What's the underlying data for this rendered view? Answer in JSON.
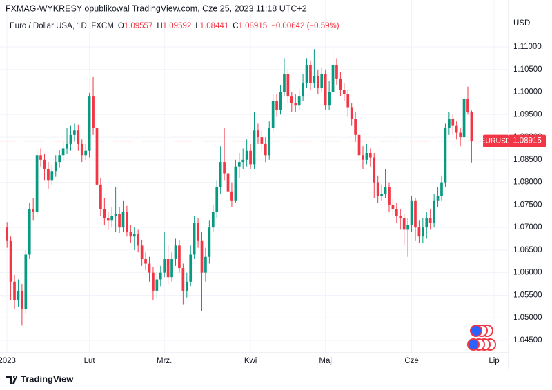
{
  "header": {
    "publisher": "FXMAG-WYKRESY opublikował TradingView.com, Cze 25, 2023 11:18 UTC+2",
    "ohlc_labels": [
      "O",
      "H",
      "L",
      "C"
    ],
    "change": "−0.00642 (−0.59%)"
  },
  "footer": {
    "brand": "TradingView"
  },
  "chart_data": {
    "type": "candlestick",
    "title": "Euro / Dollar USA, 1D, FXCM",
    "y_axis_label": "USD",
    "symbol": "EURUSD",
    "up_color": "#089981",
    "down_color": "#f23645",
    "grid": true,
    "open": [
      1.07,
      1.067,
      1.058,
      1.054,
      1.056,
      1.052,
      1.064,
      1.074,
      1.0735,
      1.086,
      1.085,
      1.083,
      1.0805,
      1.0825,
      1.0845,
      1.086,
      1.0875,
      1.0885,
      1.0905,
      1.0915,
      1.0885,
      1.086,
      1.087,
      1.099,
      1.092,
      1.0795,
      1.074,
      1.072,
      1.0715,
      1.0725,
      1.073,
      1.07,
      1.0735,
      1.069,
      1.068,
      1.0685,
      1.066,
      1.063,
      1.062,
      1.06,
      1.056,
      1.0585,
      1.06,
      1.063,
      1.059,
      1.063,
      1.066,
      1.061,
      1.056,
      1.058,
      1.064,
      1.071,
      1.067,
      1.06,
      1.0635,
      1.07,
      1.0735,
      1.079,
      1.0845,
      1.082,
      1.078,
      1.076,
      1.0835,
      1.0845,
      1.085,
      1.087,
      1.084,
      1.0915,
      1.09,
      1.0885,
      1.086,
      1.092,
      1.098,
      1.096,
      1.1,
      1.104,
      1.099,
      1.0975,
      1.097,
      1.099,
      1.102,
      1.106,
      1.102,
      1.1035,
      1.101,
      1.104,
      1.097,
      1.1,
      1.106,
      1.103,
      1.1005,
      1.0995,
      1.0965,
      1.094,
      1.0905,
      1.086,
      1.085,
      1.0865,
      1.0855,
      1.08,
      1.077,
      1.0775,
      1.079,
      1.075,
      1.074,
      1.0725,
      1.072,
      1.0695,
      1.0705,
      1.076,
      1.07,
      1.068,
      1.07,
      1.072,
      1.071,
      1.076,
      1.077,
      1.08,
      1.092,
      1.094,
      1.0925,
      1.091,
      1.09,
      1.0985,
      1.09557
    ],
    "high": [
      1.0712,
      1.068,
      1.0595,
      1.0585,
      1.0575,
      1.065,
      1.0755,
      1.0765,
      1.087,
      1.0875,
      1.0862,
      1.0845,
      1.0838,
      1.086,
      1.0872,
      1.089,
      1.092,
      1.0925,
      1.093,
      1.0928,
      1.0895,
      1.0885,
      1.0998,
      1.1033,
      1.0935,
      1.081,
      1.0765,
      1.0735,
      1.0745,
      1.079,
      1.0745,
      1.076,
      1.0748,
      1.0705,
      1.07,
      1.0695,
      1.0672,
      1.0645,
      1.0635,
      1.0612,
      1.06,
      1.0615,
      1.069,
      1.066,
      1.0645,
      1.0675,
      1.0672,
      1.062,
      1.06,
      1.066,
      1.0725,
      1.072,
      1.069,
      1.0655,
      1.0715,
      1.075,
      1.0805,
      1.088,
      1.092,
      1.0835,
      1.08,
      1.085,
      1.0865,
      1.0875,
      1.0895,
      1.0885,
      1.0955,
      1.093,
      1.0915,
      1.09,
      1.0935,
      1.0995,
      1.0995,
      1.1015,
      1.1075,
      1.105,
      1.1,
      1.0995,
      1.1005,
      1.104,
      1.1075,
      1.107,
      1.1095,
      1.105,
      1.1055,
      1.105,
      1.1025,
      1.1092,
      1.1075,
      1.1045,
      1.102,
      1.1005,
      1.0975,
      1.0955,
      1.0915,
      1.088,
      1.0885,
      1.0875,
      1.0865,
      1.0815,
      1.0795,
      1.083,
      1.08,
      1.0765,
      1.0755,
      1.074,
      1.073,
      1.072,
      1.077,
      1.0765,
      1.0715,
      1.072,
      1.0735,
      1.074,
      1.0775,
      1.079,
      1.0815,
      1.093,
      1.0955,
      1.095,
      1.0935,
      1.092,
      1.099,
      1.1012,
      1.09592
    ],
    "low": [
      1.0655,
      1.054,
      1.052,
      1.0525,
      1.0483,
      1.051,
      1.063,
      1.0715,
      1.0725,
      1.0835,
      1.0805,
      1.0785,
      1.0795,
      1.0812,
      1.0832,
      1.0848,
      1.0862,
      1.087,
      1.089,
      1.087,
      1.0845,
      1.085,
      1.0855,
      1.0905,
      1.0785,
      1.0725,
      1.0705,
      1.0695,
      1.07,
      1.069,
      1.0688,
      1.069,
      1.068,
      1.0665,
      1.065,
      1.0645,
      1.0615,
      1.0605,
      1.058,
      1.054,
      1.0545,
      1.057,
      1.059,
      1.0575,
      1.058,
      1.0615,
      1.06,
      1.053,
      1.0545,
      1.057,
      1.063,
      1.0655,
      1.0515,
      1.058,
      1.062,
      1.069,
      1.072,
      1.0775,
      1.0805,
      1.0765,
      1.0745,
      1.0755,
      1.081,
      1.083,
      1.0835,
      1.083,
      1.083,
      1.0885,
      1.087,
      1.0845,
      1.085,
      1.091,
      1.0945,
      1.095,
      1.099,
      1.0975,
      1.0955,
      1.0955,
      1.096,
      1.098,
      1.101,
      1.1005,
      1.101,
      1.0995,
      1.1,
      1.096,
      1.096,
      1.099,
      1.1015,
      1.099,
      1.098,
      1.0945,
      1.0925,
      1.089,
      1.0845,
      1.083,
      1.084,
      1.0835,
      1.0765,
      1.0755,
      1.076,
      1.0765,
      1.0735,
      1.0725,
      1.071,
      1.0695,
      1.066,
      1.0635,
      1.069,
      1.067,
      1.0665,
      1.0665,
      1.0675,
      1.0695,
      1.07,
      1.0745,
      1.076,
      1.079,
      1.0905,
      1.0905,
      1.0895,
      1.088,
      1.089,
      1.095,
      1.08441
    ],
    "close": [
      1.067,
      1.058,
      1.054,
      1.056,
      1.052,
      1.064,
      1.074,
      1.0735,
      1.086,
      1.085,
      1.083,
      1.0805,
      1.0825,
      1.0845,
      1.086,
      1.0875,
      1.0885,
      1.0905,
      1.0915,
      1.0885,
      1.086,
      1.087,
      1.099,
      1.092,
      1.0795,
      1.074,
      1.072,
      1.0715,
      1.0725,
      1.073,
      1.07,
      1.0735,
      1.069,
      1.068,
      1.0685,
      1.066,
      1.063,
      1.062,
      1.06,
      1.056,
      1.0585,
      1.06,
      1.063,
      1.059,
      1.063,
      1.066,
      1.061,
      1.056,
      1.058,
      1.064,
      1.071,
      1.067,
      1.06,
      1.0635,
      1.07,
      1.0735,
      1.079,
      1.0845,
      1.082,
      1.078,
      1.076,
      1.0835,
      1.0845,
      1.085,
      1.087,
      1.084,
      1.0915,
      1.09,
      1.0885,
      1.086,
      1.092,
      1.098,
      1.096,
      1.1,
      1.104,
      1.099,
      1.0975,
      1.097,
      1.099,
      1.102,
      1.106,
      1.102,
      1.1035,
      1.101,
      1.104,
      1.097,
      1.1,
      1.106,
      1.103,
      1.1005,
      1.0995,
      1.0965,
      1.094,
      1.0905,
      1.086,
      1.085,
      1.0865,
      1.0855,
      1.08,
      1.077,
      1.0775,
      1.079,
      1.075,
      1.074,
      1.0725,
      1.072,
      1.0695,
      1.0705,
      1.076,
      1.07,
      1.068,
      1.07,
      1.072,
      1.071,
      1.076,
      1.077,
      1.08,
      1.092,
      1.094,
      1.0925,
      1.091,
      1.09,
      1.0985,
      1.09557,
      1.08915
    ],
    "xlim": [
      -0.4,
      133.5
    ],
    "xticks": [
      {
        "value": 0,
        "label": "2023"
      },
      {
        "value": 22,
        "label": "Lut"
      },
      {
        "value": 42,
        "label": "Mrz."
      },
      {
        "value": 65,
        "label": "Kwi"
      },
      {
        "value": 85,
        "label": "Maj"
      },
      {
        "value": 108,
        "label": "Cze"
      },
      {
        "value": 130,
        "label": "Lip"
      }
    ],
    "ylim": [
      1.04225,
      1.11351
    ],
    "yticks": [
      {
        "value": 1.045,
        "label": "1.04500"
      },
      {
        "value": 1.05,
        "label": "1.05000"
      },
      {
        "value": 1.055,
        "label": "1.05500"
      },
      {
        "value": 1.06,
        "label": "1.06000"
      },
      {
        "value": 1.065,
        "label": "1.06500"
      },
      {
        "value": 1.07,
        "label": "1.07000"
      },
      {
        "value": 1.075,
        "label": "1.07500"
      },
      {
        "value": 1.08,
        "label": "1.08000"
      },
      {
        "value": 1.085,
        "label": "1.08500"
      },
      {
        "value": 1.09,
        "label": "1.09000"
      },
      {
        "value": 1.095,
        "label": "1.09500"
      },
      {
        "value": 1.1,
        "label": "1.10000"
      },
      {
        "value": 1.105,
        "label": "1.10500"
      },
      {
        "value": 1.11,
        "label": "1.11000"
      }
    ]
  }
}
